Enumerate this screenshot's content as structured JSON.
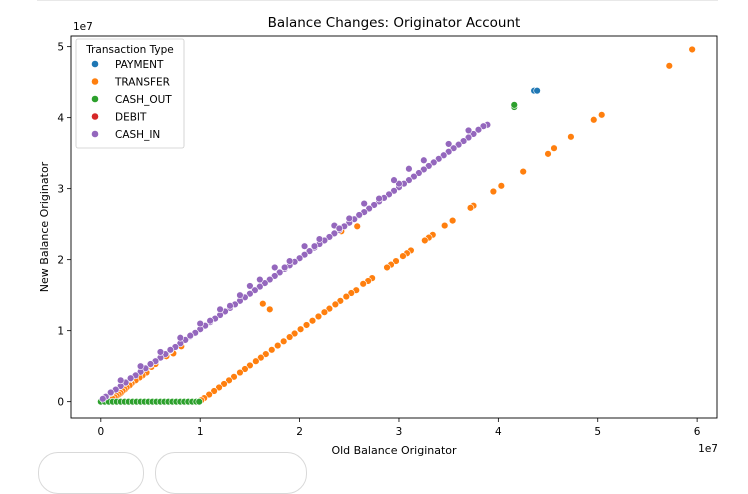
{
  "chart_data": {
    "type": "scatter",
    "title": "Balance Changes: Originator Account",
    "xlabel": "Old Balance Originator",
    "ylabel": "New Balance Originator",
    "x_multiplier_label": "1e7",
    "y_multiplier_label": "1e7",
    "xlim": [
      -3000000,
      62000000
    ],
    "ylim": [
      -2300000,
      51500000
    ],
    "xticks": [
      0,
      10000000,
      20000000,
      30000000,
      40000000,
      50000000,
      60000000
    ],
    "xtick_labels": [
      "0",
      "1",
      "2",
      "3",
      "4",
      "5",
      "6"
    ],
    "yticks": [
      0,
      10000000,
      20000000,
      30000000,
      40000000,
      50000000
    ],
    "ytick_labels": [
      "0",
      "1",
      "2",
      "3",
      "4",
      "5"
    ],
    "grid": false,
    "legend": {
      "title": "Transaction Type",
      "position": "top-left"
    },
    "series": [
      {
        "name": "PAYMENT",
        "color": "#1f77b4",
        "points": [
          [
            0,
            0
          ],
          [
            300000,
            200000
          ],
          [
            500000,
            400000
          ],
          [
            700000,
            600000
          ],
          [
            800000,
            700000
          ],
          [
            1000000,
            900000
          ],
          [
            600000,
            300000
          ],
          [
            43600000,
            43800000
          ],
          [
            43900000,
            43800000
          ]
        ]
      },
      {
        "name": "TRANSFER",
        "color": "#ff7f0e",
        "points": [
          [
            59500000,
            49600000
          ],
          [
            57200000,
            47300000
          ],
          [
            50400000,
            40400000
          ],
          [
            49600000,
            39700000
          ],
          [
            47300000,
            37300000
          ],
          [
            45600000,
            35700000
          ],
          [
            45000000,
            34900000
          ],
          [
            42500000,
            32400000
          ],
          [
            40300000,
            30400000
          ],
          [
            39500000,
            29600000
          ],
          [
            37500000,
            27600000
          ],
          [
            37200000,
            27300000
          ],
          [
            35400000,
            25500000
          ],
          [
            34600000,
            24800000
          ],
          [
            33400000,
            23500000
          ],
          [
            33000000,
            23100000
          ],
          [
            32600000,
            22700000
          ],
          [
            31200000,
            21300000
          ],
          [
            30800000,
            20900000
          ],
          [
            30400000,
            20500000
          ],
          [
            29700000,
            19800000
          ],
          [
            29200000,
            19300000
          ],
          [
            28800000,
            18900000
          ],
          [
            27300000,
            17400000
          ],
          [
            26900000,
            17000000
          ],
          [
            26400000,
            16600000
          ],
          [
            25700000,
            15700000
          ],
          [
            25200000,
            15300000
          ],
          [
            24700000,
            14800000
          ],
          [
            24100000,
            14200000
          ],
          [
            23600000,
            13700000
          ],
          [
            23000000,
            13100000
          ],
          [
            22500000,
            12600000
          ],
          [
            21900000,
            12000000
          ],
          [
            21300000,
            11400000
          ],
          [
            20700000,
            10800000
          ],
          [
            20100000,
            10200000
          ],
          [
            19500000,
            9600000
          ],
          [
            19000000,
            9100000
          ],
          [
            18400000,
            8500000
          ],
          [
            17800000,
            7900000
          ],
          [
            17200000,
            7300000
          ],
          [
            16600000,
            6700000
          ],
          [
            16100000,
            6200000
          ],
          [
            15600000,
            5700000
          ],
          [
            15000000,
            5100000
          ],
          [
            14500000,
            4600000
          ],
          [
            14000000,
            4100000
          ],
          [
            13400000,
            3500000
          ],
          [
            12900000,
            3000000
          ],
          [
            12400000,
            2500000
          ],
          [
            11900000,
            2000000
          ],
          [
            11400000,
            1500000
          ],
          [
            10900000,
            1000000
          ],
          [
            10400000,
            500000
          ],
          [
            10100000,
            200000
          ],
          [
            16300000,
            13800000
          ],
          [
            17000000,
            13000000
          ],
          [
            25800000,
            24700000
          ],
          [
            24200000,
            24000000
          ],
          [
            5100000,
            4900000
          ],
          [
            5500000,
            5300000
          ],
          [
            4600000,
            4100000
          ],
          [
            4200000,
            3700000
          ],
          [
            3900000,
            3400000
          ],
          [
            3500000,
            3000000
          ],
          [
            3100000,
            2600000
          ],
          [
            2900000,
            2300000
          ],
          [
            2600000,
            2000000
          ],
          [
            2400000,
            1700000
          ],
          [
            2200000,
            1500000
          ],
          [
            2000000,
            1200000
          ],
          [
            1800000,
            1000000
          ],
          [
            1600000,
            800000
          ],
          [
            1400000,
            600000
          ],
          [
            1200000,
            400000
          ],
          [
            7300000,
            6800000
          ],
          [
            6600000,
            6400000
          ],
          [
            8100000,
            7800000
          ]
        ]
      },
      {
        "name": "CASH_OUT",
        "color": "#2ca02c",
        "points": [
          [
            0,
            0
          ],
          [
            400000,
            0
          ],
          [
            800000,
            0
          ],
          [
            1200000,
            0
          ],
          [
            1600000,
            0
          ],
          [
            2000000,
            0
          ],
          [
            2400000,
            0
          ],
          [
            2800000,
            0
          ],
          [
            3200000,
            0
          ],
          [
            3600000,
            0
          ],
          [
            4000000,
            0
          ],
          [
            4400000,
            0
          ],
          [
            4800000,
            0
          ],
          [
            5200000,
            0
          ],
          [
            5600000,
            0
          ],
          [
            6000000,
            0
          ],
          [
            6400000,
            0
          ],
          [
            6800000,
            0
          ],
          [
            7200000,
            0
          ],
          [
            7600000,
            0
          ],
          [
            8000000,
            0
          ],
          [
            8400000,
            0
          ],
          [
            8800000,
            0
          ],
          [
            9200000,
            0
          ],
          [
            9600000,
            0
          ],
          [
            9900000,
            0
          ],
          [
            41600000,
            41500000
          ],
          [
            41600000,
            41800000
          ]
        ]
      },
      {
        "name": "DEBIT",
        "color": "#d62728",
        "points": []
      },
      {
        "name": "CASH_IN",
        "color": "#9467bd",
        "points": [
          [
            38900000,
            39000000
          ],
          [
            38500000,
            38800000
          ],
          [
            38000000,
            38300000
          ],
          [
            37500000,
            37700000
          ],
          [
            37000000,
            37200000
          ],
          [
            36500000,
            36700000
          ],
          [
            36000000,
            36200000
          ],
          [
            35500000,
            35700000
          ],
          [
            35000000,
            35200000
          ],
          [
            34500000,
            34700000
          ],
          [
            34000000,
            34200000
          ],
          [
            33500000,
            33700000
          ],
          [
            33000000,
            33200000
          ],
          [
            32500000,
            32700000
          ],
          [
            32000000,
            32200000
          ],
          [
            31500000,
            31700000
          ],
          [
            31000000,
            31200000
          ],
          [
            30500000,
            30700000
          ],
          [
            30000000,
            30200000
          ],
          [
            29500000,
            29700000
          ],
          [
            29000000,
            29200000
          ],
          [
            28500000,
            28700000
          ],
          [
            28000000,
            28200000
          ],
          [
            27500000,
            27700000
          ],
          [
            27000000,
            27200000
          ],
          [
            26500000,
            26700000
          ],
          [
            26000000,
            26200000
          ],
          [
            25500000,
            25700000
          ],
          [
            25000000,
            25200000
          ],
          [
            24500000,
            24700000
          ],
          [
            24000000,
            24200000
          ],
          [
            23500000,
            23700000
          ],
          [
            23000000,
            23200000
          ],
          [
            22500000,
            22700000
          ],
          [
            22000000,
            22200000
          ],
          [
            21500000,
            21700000
          ],
          [
            21000000,
            21200000
          ],
          [
            20500000,
            20700000
          ],
          [
            20000000,
            20200000
          ],
          [
            19500000,
            19700000
          ],
          [
            19000000,
            19200000
          ],
          [
            18500000,
            18700000
          ],
          [
            18000000,
            18200000
          ],
          [
            17500000,
            17700000
          ],
          [
            17000000,
            17200000
          ],
          [
            16500000,
            16700000
          ],
          [
            16000000,
            16200000
          ],
          [
            15500000,
            15700000
          ],
          [
            15000000,
            15200000
          ],
          [
            14500000,
            14700000
          ],
          [
            14000000,
            14200000
          ],
          [
            13500000,
            13700000
          ],
          [
            13000000,
            13200000
          ],
          [
            12500000,
            12700000
          ],
          [
            12000000,
            12200000
          ],
          [
            11500000,
            11700000
          ],
          [
            11000000,
            11200000
          ],
          [
            10500000,
            10700000
          ],
          [
            10000000,
            10200000
          ],
          [
            9500000,
            9700000
          ],
          [
            9000000,
            9200000
          ],
          [
            8500000,
            8700000
          ],
          [
            8000000,
            8200000
          ],
          [
            7500000,
            7700000
          ],
          [
            7000000,
            7200000
          ],
          [
            6500000,
            6700000
          ],
          [
            6000000,
            6200000
          ],
          [
            5500000,
            5700000
          ],
          [
            5000000,
            5200000
          ],
          [
            4500000,
            4700000
          ],
          [
            4000000,
            4200000
          ],
          [
            3500000,
            3700000
          ],
          [
            3000000,
            3200000
          ],
          [
            2500000,
            2700000
          ],
          [
            2000000,
            2200000
          ],
          [
            1500000,
            1700000
          ],
          [
            1000000,
            1200000
          ],
          [
            500000,
            700000
          ],
          [
            200000,
            400000
          ],
          [
            30000000,
            30700000
          ],
          [
            31000000,
            32800000
          ],
          [
            28000000,
            28600000
          ],
          [
            25000000,
            25800000
          ],
          [
            22000000,
            22900000
          ],
          [
            19000000,
            19800000
          ],
          [
            16000000,
            17200000
          ],
          [
            14000000,
            15000000
          ],
          [
            12000000,
            13000000
          ],
          [
            10000000,
            11000000
          ],
          [
            8000000,
            9000000
          ],
          [
            6000000,
            7000000
          ],
          [
            4000000,
            5000000
          ],
          [
            2000000,
            3000000
          ],
          [
            17500000,
            18900000
          ],
          [
            20500000,
            21900000
          ],
          [
            23500000,
            24800000
          ],
          [
            26500000,
            27900000
          ],
          [
            29500000,
            31200000
          ],
          [
            32500000,
            34000000
          ],
          [
            35000000,
            36300000
          ],
          [
            37000000,
            38200000
          ],
          [
            15000000,
            16300000
          ],
          [
            13000000,
            13500000
          ],
          [
            11000000,
            11400000
          ],
          [
            9000000,
            9300000
          ],
          [
            7000000,
            7300000
          ],
          [
            5000000,
            5300000
          ],
          [
            3000000,
            3300000
          ],
          [
            1000000,
            1300000
          ],
          [
            26000000,
            26300000
          ],
          [
            24000000,
            24400000
          ],
          [
            21500000,
            21900000
          ],
          [
            18500000,
            18900000
          ]
        ]
      }
    ]
  }
}
